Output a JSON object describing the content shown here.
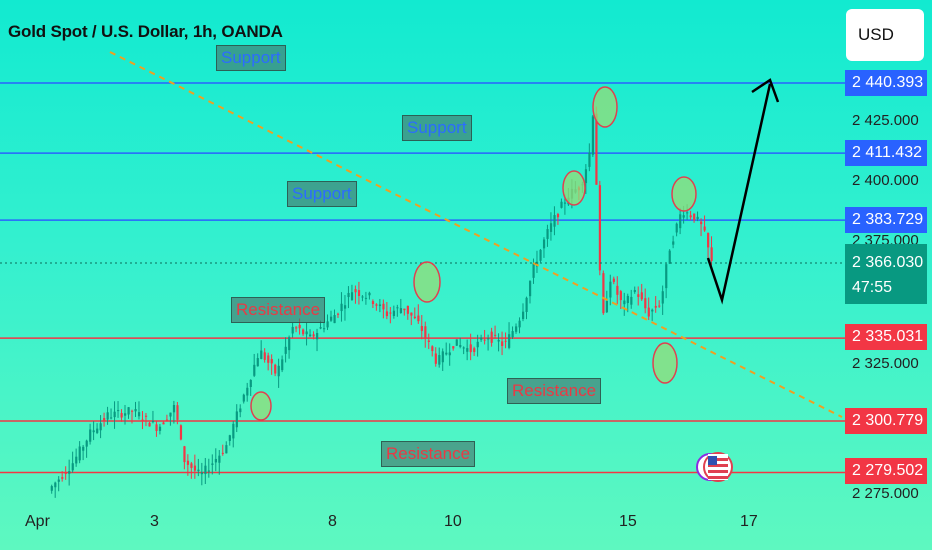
{
  "header": {
    "title": "Gold Spot / U.S. Dollar, 1h, OANDA",
    "currency_button": "USD"
  },
  "price_axis": {
    "ticks": [
      "2 425.000",
      "2 400.000",
      "2 375.000",
      "2 325.000",
      "2 275.000"
    ]
  },
  "time_axis": {
    "labels": [
      "Apr",
      "3",
      "8",
      "10",
      "15",
      "17"
    ]
  },
  "level_lines": [
    {
      "price": "2 440.393",
      "kind": "support",
      "color": "#2962ff"
    },
    {
      "price": "2 411.432",
      "kind": "support",
      "color": "#2962ff"
    },
    {
      "price": "2 383.729",
      "kind": "support",
      "color": "#2962ff"
    },
    {
      "price": "2 335.031",
      "kind": "resistance",
      "color": "#f23645"
    },
    {
      "price": "2 300.779",
      "kind": "resistance",
      "color": "#f23645"
    },
    {
      "price": "2 279.502",
      "kind": "resistance",
      "color": "#f23645"
    }
  ],
  "current_price": {
    "value": "2 366.030",
    "countdown": "47:55",
    "color": "#089981"
  },
  "annotations": {
    "support_labels": [
      "Support",
      "Support",
      "Support"
    ],
    "resistance_labels": [
      "Resistance",
      "Resistance",
      "Resistance"
    ]
  },
  "chart_data": {
    "type": "candlestick",
    "title": "Gold Spot / U.S. Dollar, 1h, OANDA",
    "x_labels": [
      "Apr",
      "3",
      "8",
      "10",
      "15",
      "17"
    ],
    "y_ticks": [
      2425,
      2400,
      2375,
      2325,
      2275
    ],
    "horizontal_levels": [
      2440.393,
      2411.432,
      2383.729,
      2335.031,
      2300.779,
      2279.502
    ],
    "current_price": 2366.03,
    "ylim": [
      2270,
      2460
    ],
    "up_color": "#089981",
    "down_color": "#f23645",
    "price_path": [
      {
        "t": 0.06,
        "p": 2272
      },
      {
        "t": 0.09,
        "p": 2284
      },
      {
        "t": 0.11,
        "p": 2296
      },
      {
        "t": 0.13,
        "p": 2303
      },
      {
        "t": 0.16,
        "p": 2305
      },
      {
        "t": 0.19,
        "p": 2298
      },
      {
        "t": 0.21,
        "p": 2307
      },
      {
        "t": 0.22,
        "p": 2285
      },
      {
        "t": 0.24,
        "p": 2278
      },
      {
        "t": 0.27,
        "p": 2290
      },
      {
        "t": 0.29,
        "p": 2310
      },
      {
        "t": 0.31,
        "p": 2330
      },
      {
        "t": 0.33,
        "p": 2320
      },
      {
        "t": 0.35,
        "p": 2340
      },
      {
        "t": 0.37,
        "p": 2335
      },
      {
        "t": 0.4,
        "p": 2345
      },
      {
        "t": 0.42,
        "p": 2355
      },
      {
        "t": 0.44,
        "p": 2352
      },
      {
        "t": 0.46,
        "p": 2345
      },
      {
        "t": 0.48,
        "p": 2348
      },
      {
        "t": 0.5,
        "p": 2340
      },
      {
        "t": 0.52,
        "p": 2325
      },
      {
        "t": 0.54,
        "p": 2333
      },
      {
        "t": 0.56,
        "p": 2330
      },
      {
        "t": 0.58,
        "p": 2336
      },
      {
        "t": 0.6,
        "p": 2332
      },
      {
        "t": 0.62,
        "p": 2345
      },
      {
        "t": 0.635,
        "p": 2365
      },
      {
        "t": 0.65,
        "p": 2378
      },
      {
        "t": 0.66,
        "p": 2385
      },
      {
        "t": 0.675,
        "p": 2394
      },
      {
        "t": 0.69,
        "p": 2398
      },
      {
        "t": 0.7,
        "p": 2410
      },
      {
        "t": 0.705,
        "p": 2430
      },
      {
        "t": 0.71,
        "p": 2388
      },
      {
        "t": 0.715,
        "p": 2340
      },
      {
        "t": 0.725,
        "p": 2360
      },
      {
        "t": 0.74,
        "p": 2348
      },
      {
        "t": 0.755,
        "p": 2355
      },
      {
        "t": 0.77,
        "p": 2345
      },
      {
        "t": 0.785,
        "p": 2350
      },
      {
        "t": 0.795,
        "p": 2372
      },
      {
        "t": 0.81,
        "p": 2388
      },
      {
        "t": 0.825,
        "p": 2385
      },
      {
        "t": 0.835,
        "p": 2380
      },
      {
        "t": 0.845,
        "p": 2366
      }
    ]
  }
}
